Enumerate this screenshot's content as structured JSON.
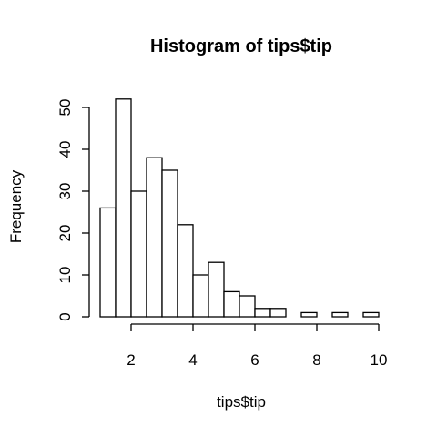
{
  "chart_data": {
    "type": "bar",
    "title": "Histogram of tips$tip",
    "xlabel": "tips$tip",
    "ylabel": "Frequency",
    "bin_width": 0.5,
    "bins": [
      {
        "x0": 1.0,
        "x1": 1.5,
        "count": 26
      },
      {
        "x0": 1.5,
        "x1": 2.0,
        "count": 52
      },
      {
        "x0": 2.0,
        "x1": 2.5,
        "count": 30
      },
      {
        "x0": 2.5,
        "x1": 3.0,
        "count": 38
      },
      {
        "x0": 3.0,
        "x1": 3.5,
        "count": 35
      },
      {
        "x0": 3.5,
        "x1": 4.0,
        "count": 22
      },
      {
        "x0": 4.0,
        "x1": 4.5,
        "count": 10
      },
      {
        "x0": 4.5,
        "x1": 5.0,
        "count": 13
      },
      {
        "x0": 5.0,
        "x1": 5.5,
        "count": 6
      },
      {
        "x0": 5.5,
        "x1": 6.0,
        "count": 5
      },
      {
        "x0": 6.0,
        "x1": 6.5,
        "count": 2
      },
      {
        "x0": 6.5,
        "x1": 7.0,
        "count": 2
      },
      {
        "x0": 7.0,
        "x1": 7.5,
        "count": 0
      },
      {
        "x0": 7.5,
        "x1": 8.0,
        "count": 1
      },
      {
        "x0": 8.0,
        "x1": 8.5,
        "count": 0
      },
      {
        "x0": 8.5,
        "x1": 9.0,
        "count": 1
      },
      {
        "x0": 9.0,
        "x1": 9.5,
        "count": 0
      },
      {
        "x0": 9.5,
        "x1": 10.0,
        "count": 1
      }
    ],
    "xlim": [
      1,
      10
    ],
    "ylim": [
      0,
      52
    ],
    "x_ticks": [
      2,
      4,
      6,
      8,
      10
    ],
    "y_ticks": [
      0,
      10,
      20,
      30,
      40,
      50
    ],
    "grid": false,
    "legend": "none"
  }
}
